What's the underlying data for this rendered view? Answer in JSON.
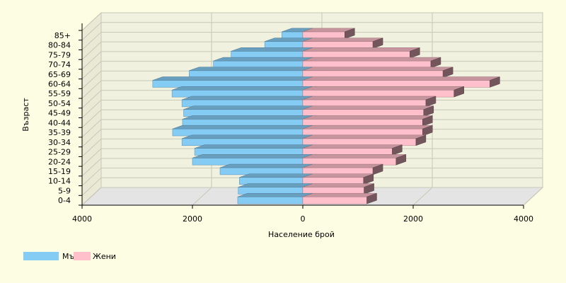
{
  "chart_data": {
    "type": "bar",
    "orientation": "horizontal",
    "style": "population-pyramid-3d",
    "categories": [
      "0-4",
      "5-9",
      "10-14",
      "15-19",
      "20-24",
      "25-29",
      "30-34",
      "35-39",
      "40-44",
      "45-49",
      "50-54",
      "55-59",
      "60-64",
      "65-69",
      "70-74",
      "75-79",
      "80-84",
      "85+"
    ],
    "series": [
      {
        "name": "Мъже",
        "side": "left",
        "color": "#85ccf5",
        "values": [
          1180,
          1170,
          1150,
          1500,
          2000,
          1960,
          2190,
          2360,
          2180,
          2160,
          2190,
          2370,
          2720,
          2060,
          1620,
          1300,
          690,
          380
        ]
      },
      {
        "name": "Жени",
        "side": "right",
        "color": "#ffbfcb",
        "values": [
          1160,
          1110,
          1100,
          1270,
          1690,
          1620,
          2050,
          2170,
          2170,
          2190,
          2230,
          2740,
          3390,
          2540,
          2320,
          1940,
          1270,
          760
        ]
      }
    ],
    "xlim": [
      -4000,
      4000
    ],
    "xticks": [
      -4000,
      -2000,
      0,
      2000,
      4000
    ],
    "xtick_labels": [
      "4000",
      "2000",
      "0",
      "2000",
      "4000"
    ],
    "xlabel": "Население брой",
    "ylabel": "Възраст",
    "grid": true,
    "legend_position": "bottom-left",
    "colors": {
      "background": "#fdfde3",
      "plot_back": "#f1f1e0",
      "gridline": "#c8c8b8"
    }
  }
}
